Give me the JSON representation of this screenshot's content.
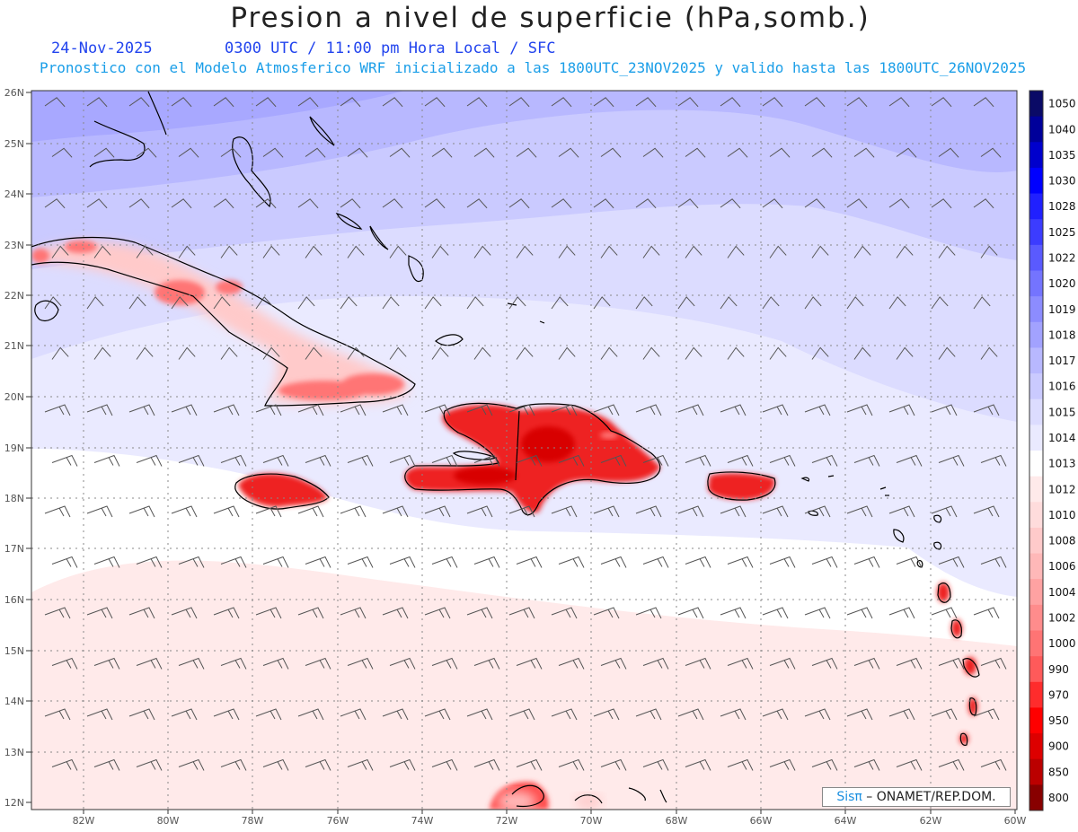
{
  "header": {
    "title": "Presion a nivel de superficie (hPa,somb.)",
    "date": "24-Nov-2025",
    "time": "0300 UTC / 11:00 pm Hora Local / SFC",
    "run_info": "Pronostico con el Modelo Atmosferico WRF inicializado a las 1800UTC_23NOV2025 y valido hasta las  1800UTC_26NOV2025"
  },
  "axes": {
    "lat_labels": [
      "26N",
      "25N",
      "24N",
      "23N",
      "22N",
      "21N",
      "20N",
      "19N",
      "18N",
      "17N",
      "16N",
      "15N",
      "14N",
      "13N",
      "12N"
    ],
    "lon_labels": [
      "82W",
      "80W",
      "78W",
      "76W",
      "74W",
      "72W",
      "70W",
      "68W",
      "66W",
      "64W",
      "62W",
      "60W"
    ]
  },
  "colorbar": {
    "levels": [
      "1050",
      "1040",
      "1035",
      "1030",
      "1028",
      "1025",
      "1022",
      "1020",
      "1019",
      "1018",
      "1017",
      "1016",
      "1015",
      "1014",
      "1013",
      "1012",
      "1010",
      "1008",
      "1006",
      "1004",
      "1002",
      "1000",
      "990",
      "970",
      "950",
      "900",
      "850",
      "800"
    ],
    "colors": [
      "#0a0a66",
      "#00009a",
      "#0000cc",
      "#0000ff",
      "#2020ff",
      "#3c3cff",
      "#5a5aff",
      "#7474ff",
      "#8c8cff",
      "#a2a2ff",
      "#b8b8ff",
      "#cacaff",
      "#dcdcff",
      "#eaeaff",
      "#ffffff",
      "#ffeaea",
      "#ffdcdc",
      "#ffcaca",
      "#ffb8b8",
      "#ffa2a2",
      "#ff8c8c",
      "#ff7474",
      "#ff5a5a",
      "#ff2c2c",
      "#ff0000",
      "#dd0000",
      "#bb0000",
      "#880000"
    ]
  },
  "credit": {
    "brand": "Sisπ",
    "text": " – ONAMET/REP.DOM."
  }
}
